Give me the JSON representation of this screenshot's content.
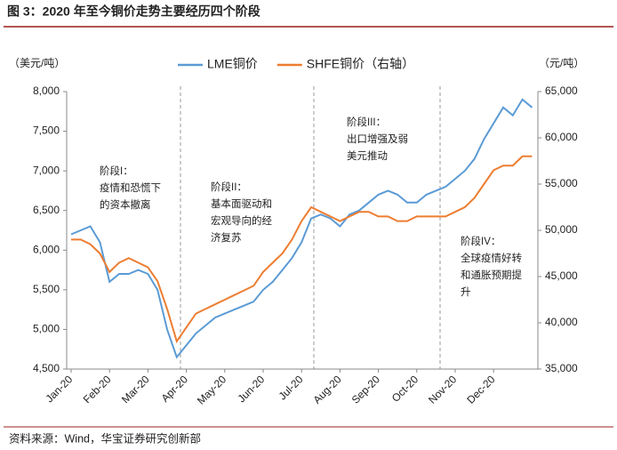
{
  "chart_data": {
    "type": "line",
    "title": "图 3：2020 年至今铜价走势主要经历四个阶段",
    "source": "资料来源：Wind，华宝证券研究创新部",
    "ylabel": "（美元/吨）",
    "y2label": "（元/吨）",
    "categories": [
      "Jan-20",
      null,
      null,
      null,
      "Feb-20",
      null,
      null,
      null,
      "Mar-20",
      null,
      null,
      null,
      "Apr-20",
      null,
      null,
      null,
      "May-20",
      null,
      null,
      null,
      "Jun-20",
      null,
      null,
      null,
      "Jul-20",
      null,
      null,
      null,
      "Aug-20",
      null,
      null,
      null,
      "Sep-20",
      null,
      null,
      null,
      "Oct-20",
      null,
      null,
      null,
      "Nov-20",
      null,
      null,
      null,
      "Dec-20",
      null,
      null,
      null,
      null
    ],
    "series": [
      {
        "name": "LME铜价",
        "color": "#5b9bd5",
        "axis": "y",
        "values": [
          6200,
          6250,
          6300,
          6100,
          5600,
          5700,
          5700,
          5750,
          5700,
          5500,
          5000,
          4650,
          4800,
          4950,
          5050,
          5150,
          5200,
          5250,
          5300,
          5350,
          5500,
          5600,
          5750,
          5900,
          6100,
          6400,
          6450,
          6400,
          6300,
          6450,
          6500,
          6600,
          6700,
          6750,
          6700,
          6600,
          6600,
          6700,
          6750,
          6800,
          6900,
          7000,
          7150,
          7400,
          7600,
          7800,
          7700,
          7900,
          7800
        ]
      },
      {
        "name": "SHFE铜价（右轴）",
        "color": "#ed7d31",
        "axis": "y2",
        "values": [
          49000,
          49000,
          48500,
          47500,
          45500,
          46500,
          47000,
          46500,
          46000,
          44500,
          41500,
          38000,
          39500,
          41000,
          41500,
          42000,
          42500,
          43000,
          43500,
          44000,
          45500,
          46500,
          47500,
          49000,
          51000,
          52500,
          52000,
          51500,
          51000,
          51500,
          52000,
          52000,
          51500,
          51500,
          51000,
          51000,
          51500,
          51500,
          51500,
          51500,
          52000,
          52500,
          53500,
          55000,
          56500,
          57000,
          57000,
          58000,
          58000
        ]
      }
    ],
    "ylim": [
      4500,
      8000
    ],
    "yticks": [
      {
        "value": 4500,
        "label": "4,500"
      },
      {
        "value": 5000,
        "label": "5,000"
      },
      {
        "value": 5500,
        "label": "5,500"
      },
      {
        "value": 6000,
        "label": "6,000"
      },
      {
        "value": 6500,
        "label": "6,500"
      },
      {
        "value": 7000,
        "label": "7,000"
      },
      {
        "value": 7500,
        "label": "7,500"
      },
      {
        "value": 8000,
        "label": "8,000"
      }
    ],
    "y2lim": [
      35000,
      65000
    ],
    "y2ticks": [
      {
        "value": 35000,
        "label": "35,000"
      },
      {
        "value": 40000,
        "label": "40,000"
      },
      {
        "value": 45000,
        "label": "45,000"
      },
      {
        "value": 50000,
        "label": "50,000"
      },
      {
        "value": 55000,
        "label": "55,000"
      },
      {
        "value": 60000,
        "label": "60,000"
      },
      {
        "value": 65000,
        "label": "65,000"
      }
    ],
    "annotations": [
      {
        "lines": [
          "阶段I：",
          "疫情和恐慌下",
          "的资本撤离"
        ]
      },
      {
        "lines": [
          "阶段II：",
          "基本面驱动和",
          "宏观导向的经",
          "济复苏"
        ]
      },
      {
        "lines": [
          "阶段III：",
          "出口增强及弱",
          "美元推动"
        ]
      },
      {
        "lines": [
          "阶段IV：",
          "全球疫情好转",
          "和通胀预期提",
          "升"
        ]
      }
    ],
    "legend": "top"
  }
}
